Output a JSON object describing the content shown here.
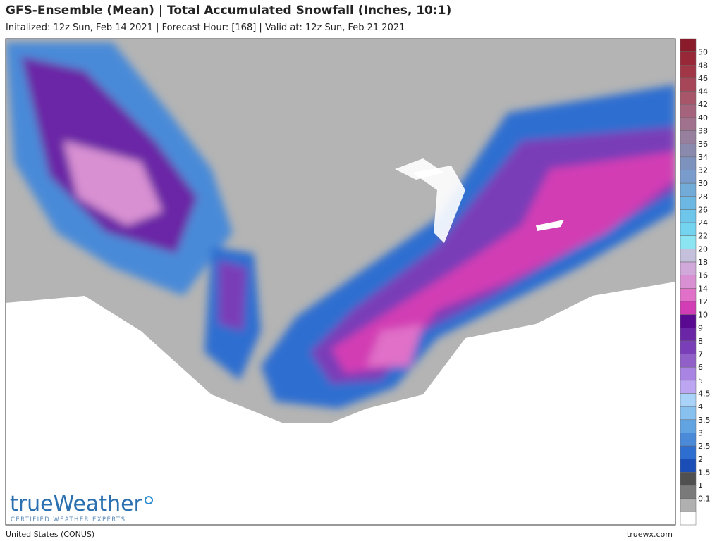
{
  "header": {
    "title": "GFS-Ensemble (Mean) | Total Accumulated Snowfall (Inches, 10:1)",
    "subtitle": "Initalized: 12z Sun, Feb 14 2021  |  Forecast Hour: [168]  |  Valid at: 12z Sun, Feb 21 2021"
  },
  "legend": {
    "labels": [
      "50",
      "48",
      "46",
      "44",
      "42",
      "40",
      "38",
      "36",
      "34",
      "32",
      "30",
      "28",
      "26",
      "24",
      "22",
      "20",
      "18",
      "16",
      "14",
      "12",
      "10",
      "9",
      "8",
      "7",
      "6",
      "5",
      "4.5",
      "4",
      "3.5",
      "3",
      "2.5",
      "2",
      "1.5",
      "1",
      "0.1"
    ],
    "colors": [
      "#8a1b2b",
      "#982838",
      "#a03646",
      "#a64658",
      "#a8566a",
      "#a6647c",
      "#a0728e",
      "#96809e",
      "#8a8aae",
      "#7e92be",
      "#7a9ccc",
      "#72aad8",
      "#6cb8e2",
      "#6ec6ea",
      "#74d4f0",
      "#8ae4f2",
      "#c4c0dc",
      "#d0a8da",
      "#d890d2",
      "#e070c8",
      "#d23cb4",
      "#5a0a90",
      "#6a26a6",
      "#7a3eb8",
      "#9060c8",
      "#aa84e2",
      "#bca6f2",
      "#a8d2f8",
      "#88c0f0",
      "#62a4e2",
      "#4a8ad8",
      "#2e6ed0",
      "#1a4eb6",
      "#505050",
      "#7a7a7a",
      "#b0b0b0",
      "#ffffff"
    ]
  },
  "logo": {
    "brand": "trueWeather",
    "tagline": "CERTIFIED WEATHER EXPERTS"
  },
  "footer": {
    "region": "United States (CONUS)",
    "site": "truewx.com"
  }
}
